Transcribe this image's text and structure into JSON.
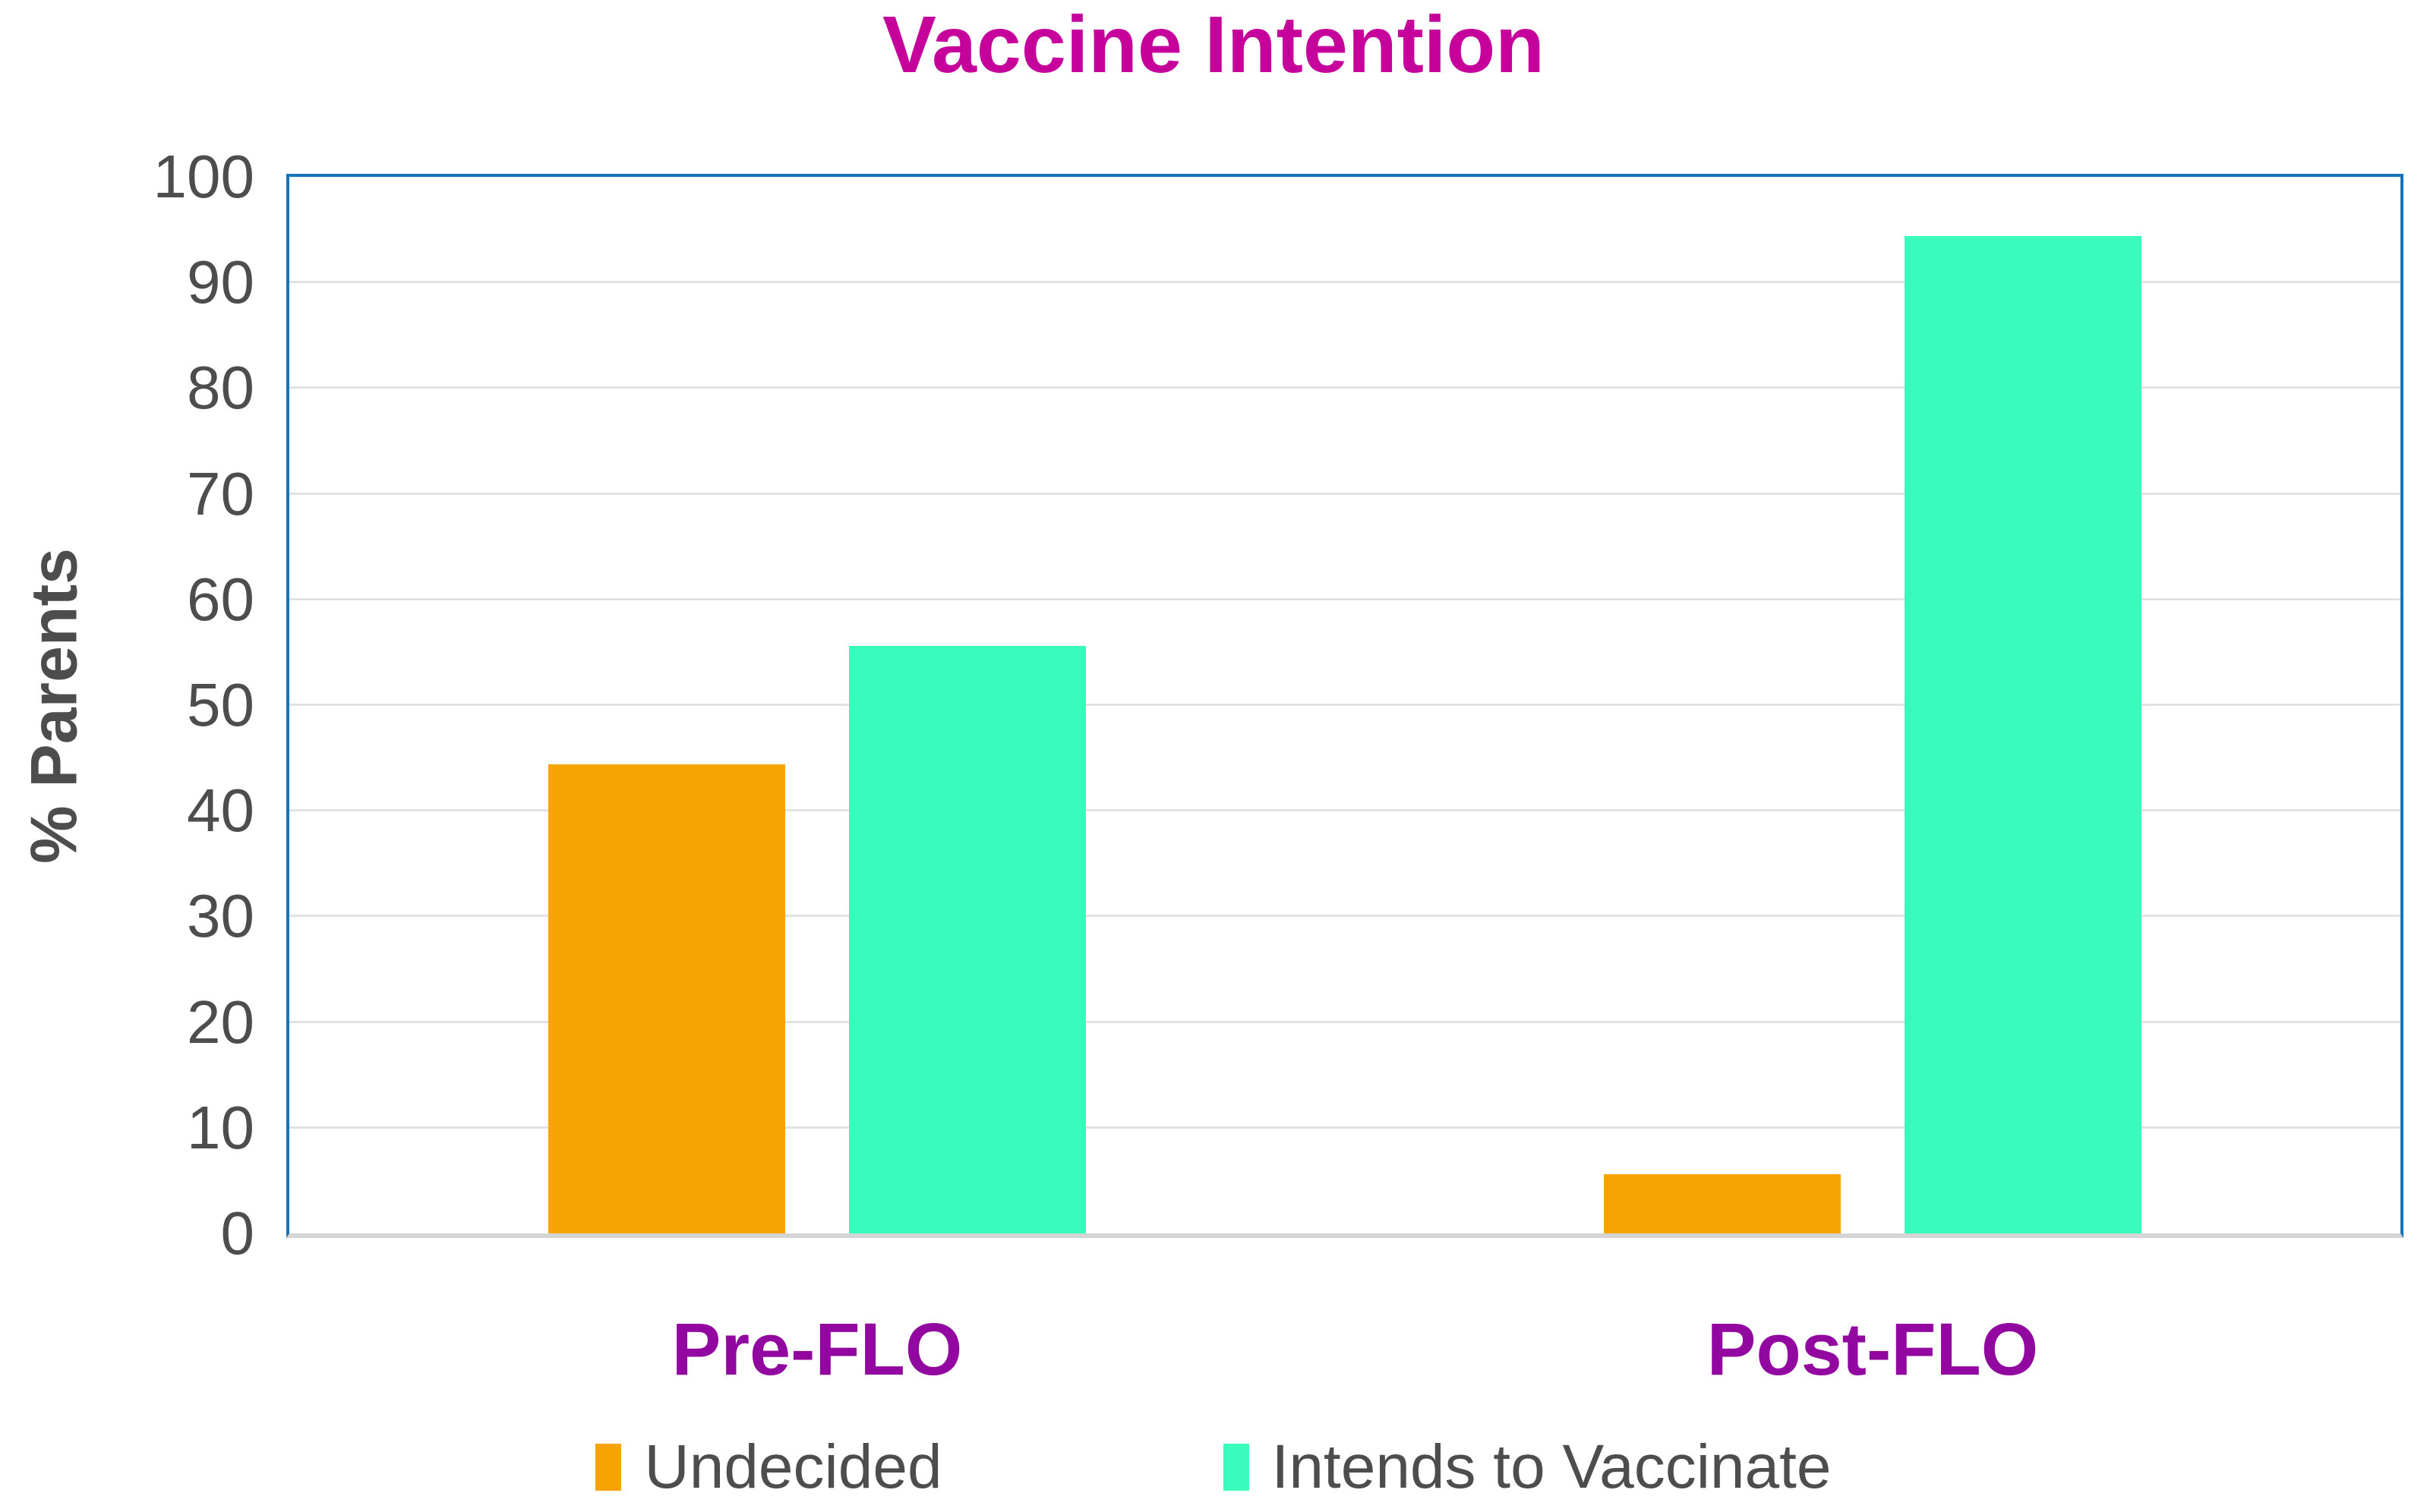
{
  "title": "Vaccine Intention",
  "colors": {
    "title": "#C5009B",
    "category_label": "#92079F",
    "axis_border": "#1674BB",
    "gridline": "#E2E2E2",
    "baseline": "#D5D5D5",
    "text": "#4D4D4D",
    "background": "#FFFFFF",
    "series_undecided": "#F8A304",
    "series_intends": "#3AFABC"
  },
  "chart_data": {
    "type": "bar",
    "title": "Vaccine Intention",
    "categories": [
      "Pre-FLO",
      "Post-FLO"
    ],
    "series": [
      {
        "name": "Undecided",
        "color": "#F8A304",
        "values": [
          44.4,
          5.6
        ]
      },
      {
        "name": "Intends to Vaccinate",
        "color": "#3AFABC",
        "values": [
          55.6,
          94.4
        ]
      }
    ],
    "xlabel": "",
    "ylabel": "% Parents",
    "ylim": [
      0,
      100
    ],
    "ytick_step": 10,
    "yticks": [
      0,
      10,
      20,
      30,
      40,
      50,
      60,
      70,
      80,
      90,
      100
    ],
    "grid": "horizontal",
    "legend_position": "bottom"
  }
}
